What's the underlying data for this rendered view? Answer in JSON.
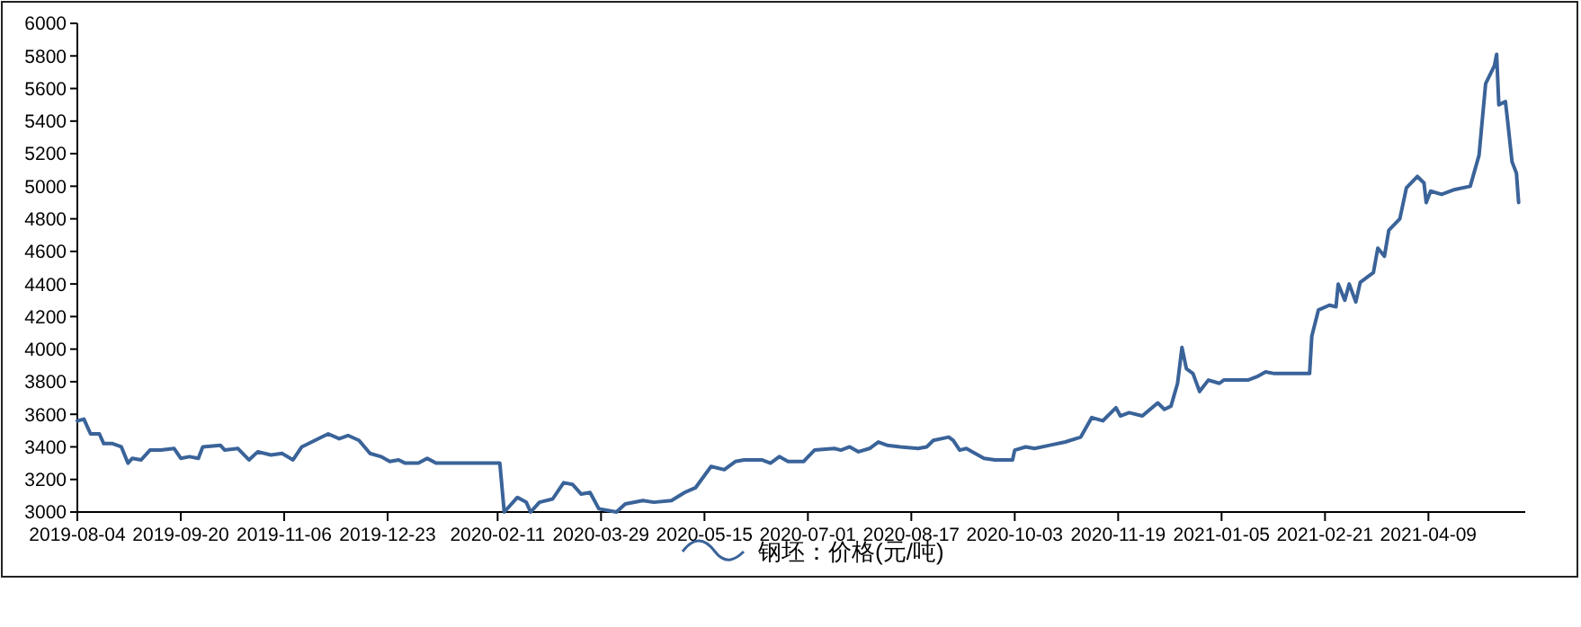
{
  "chart_data": {
    "type": "line",
    "legend": "bottom",
    "grid": false,
    "marker": "none",
    "line_style": "solid",
    "xlim": [
      "2019-08-04",
      "2021-05-23"
    ],
    "xticks": [
      "2019-08-04",
      "2019-09-20",
      "2019-11-06",
      "2019-12-23",
      "2020-02-11",
      "2020-03-29",
      "2020-05-15",
      "2020-07-01",
      "2020-08-17",
      "2020-10-03",
      "2020-11-19",
      "2021-01-05",
      "2021-02-21",
      "2021-04-09"
    ],
    "ylim": [
      3000,
      6000
    ],
    "yticks": [
      3000,
      3200,
      3400,
      3600,
      3800,
      4000,
      4200,
      4400,
      4600,
      4800,
      5000,
      5200,
      5400,
      5600,
      5800,
      6000
    ],
    "series": [
      {
        "name": "钢坯：价格(元/吨)",
        "color": "#3a6399",
        "x": [
          "2019-08-04",
          "2019-08-07",
          "2019-08-10",
          "2019-08-14",
          "2019-08-16",
          "2019-08-20",
          "2019-08-24",
          "2019-08-27",
          "2019-08-29",
          "2019-09-02",
          "2019-09-06",
          "2019-09-11",
          "2019-09-17",
          "2019-09-20",
          "2019-09-24",
          "2019-09-28",
          "2019-09-30",
          "2019-10-08",
          "2019-10-10",
          "2019-10-16",
          "2019-10-21",
          "2019-10-25",
          "2019-10-31",
          "2019-11-05",
          "2019-11-10",
          "2019-11-14",
          "2019-11-20",
          "2019-11-26",
          "2019-12-01",
          "2019-12-05",
          "2019-12-10",
          "2019-12-15",
          "2019-12-20",
          "2019-12-24",
          "2019-12-28",
          "2019-12-31",
          "2020-01-06",
          "2020-01-10",
          "2020-01-14",
          "2020-02-12",
          "2020-02-14",
          "2020-02-20",
          "2020-02-24",
          "2020-02-26",
          "2020-03-01",
          "2020-03-07",
          "2020-03-12",
          "2020-03-16",
          "2020-03-20",
          "2020-03-24",
          "2020-03-28",
          "2020-04-05",
          "2020-04-09",
          "2020-04-17",
          "2020-04-22",
          "2020-04-30",
          "2020-05-06",
          "2020-05-11",
          "2020-05-18",
          "2020-05-24",
          "2020-05-29",
          "2020-06-02",
          "2020-06-10",
          "2020-06-14",
          "2020-06-18",
          "2020-06-22",
          "2020-06-29",
          "2020-07-04",
          "2020-07-13",
          "2020-07-16",
          "2020-07-20",
          "2020-07-24",
          "2020-07-29",
          "2020-08-02",
          "2020-08-06",
          "2020-08-12",
          "2020-08-20",
          "2020-08-24",
          "2020-08-27",
          "2020-09-03",
          "2020-09-05",
          "2020-09-08",
          "2020-09-11",
          "2020-09-15",
          "2020-09-19",
          "2020-09-24",
          "2020-10-02",
          "2020-10-03",
          "2020-10-08",
          "2020-10-12",
          "2020-10-19",
          "2020-10-26",
          "2020-11-02",
          "2020-11-07",
          "2020-11-12",
          "2020-11-18",
          "2020-11-20",
          "2020-11-24",
          "2020-11-30",
          "2020-12-07",
          "2020-12-10",
          "2020-12-13",
          "2020-12-16",
          "2020-12-18",
          "2020-12-20",
          "2020-12-23",
          "2020-12-26",
          "2020-12-30",
          "2021-01-04",
          "2021-01-06",
          "2021-01-17",
          "2021-01-21",
          "2021-01-25",
          "2021-01-29",
          "2021-02-14",
          "2021-02-15",
          "2021-02-18",
          "2021-02-23",
          "2021-02-26",
          "2021-02-27",
          "2021-03-02",
          "2021-03-04",
          "2021-03-07",
          "2021-03-09",
          "2021-03-15",
          "2021-03-17",
          "2021-03-20",
          "2021-03-22",
          "2021-03-27",
          "2021-03-30",
          "2021-04-04",
          "2021-04-07",
          "2021-04-08",
          "2021-04-10",
          "2021-04-15",
          "2021-04-21",
          "2021-04-28",
          "2021-05-02",
          "2021-05-05",
          "2021-05-09",
          "2021-05-10",
          "2021-05-11",
          "2021-05-14",
          "2021-05-15",
          "2021-05-17",
          "2021-05-19",
          "2021-05-20"
        ],
        "values": [
          3560,
          3570,
          3480,
          3480,
          3420,
          3420,
          3400,
          3300,
          3330,
          3320,
          3380,
          3380,
          3390,
          3330,
          3340,
          3330,
          3400,
          3410,
          3380,
          3390,
          3320,
          3370,
          3350,
          3360,
          3320,
          3400,
          3440,
          3480,
          3450,
          3470,
          3440,
          3360,
          3340,
          3310,
          3320,
          3300,
          3300,
          3330,
          3300,
          3300,
          3000,
          3090,
          3060,
          3000,
          3060,
          3080,
          3180,
          3170,
          3110,
          3120,
          3020,
          3000,
          3050,
          3070,
          3060,
          3070,
          3120,
          3150,
          3280,
          3260,
          3310,
          3320,
          3320,
          3300,
          3340,
          3310,
          3310,
          3380,
          3390,
          3380,
          3400,
          3370,
          3390,
          3430,
          3410,
          3400,
          3390,
          3400,
          3440,
          3460,
          3440,
          3380,
          3390,
          3360,
          3330,
          3320,
          3320,
          3380,
          3400,
          3390,
          3410,
          3430,
          3460,
          3580,
          3560,
          3640,
          3590,
          3610,
          3590,
          3670,
          3630,
          3650,
          3790,
          4010,
          3880,
          3850,
          3740,
          3810,
          3790,
          3810,
          3810,
          3830,
          3860,
          3850,
          3850,
          4080,
          4240,
          4270,
          4260,
          4400,
          4300,
          4400,
          4290,
          4410,
          4470,
          4620,
          4570,
          4730,
          4800,
          4990,
          5060,
          5020,
          4900,
          4970,
          4950,
          4980,
          5000,
          5190,
          5630,
          5740,
          5810,
          5500,
          5520,
          5400,
          5150,
          5080,
          4900
        ]
      }
    ]
  }
}
